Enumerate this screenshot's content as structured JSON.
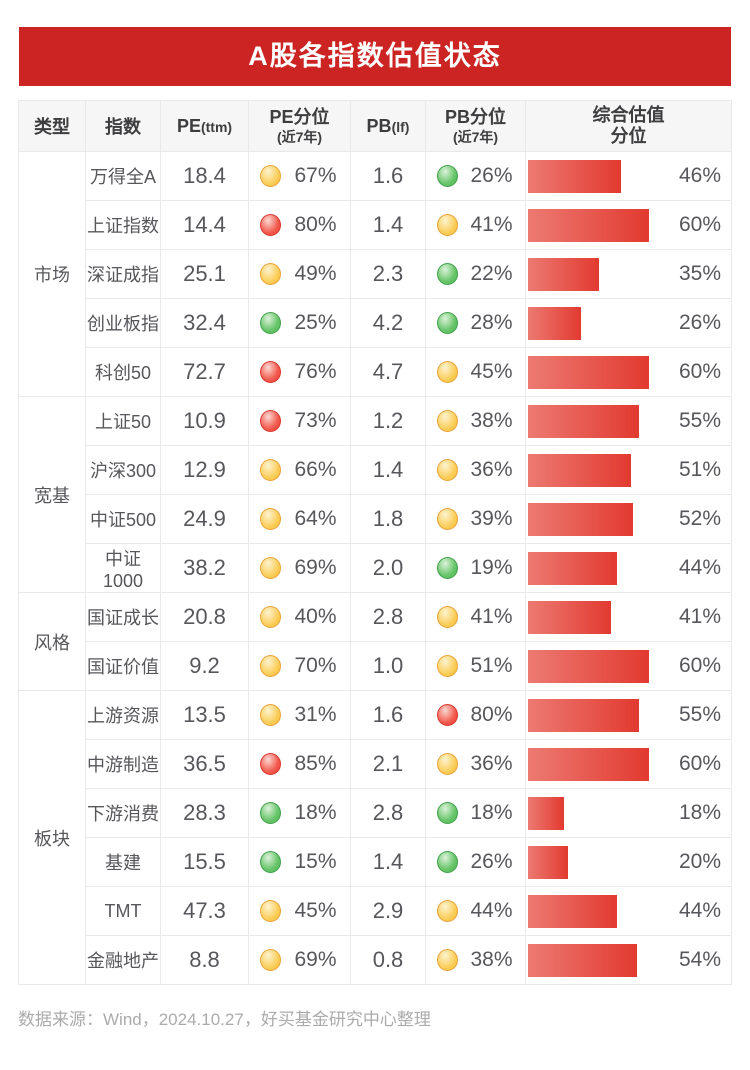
{
  "title": "A股各指数估值状态",
  "source_note": "数据来源：Wind，2024.10.27，好买基金研究中心整理",
  "columns": {
    "type": "类型",
    "index": "指数",
    "pe_label": "PE",
    "pe_unit": "(ttm)",
    "pe_pct_label": "PE分位",
    "pb_label": "PB",
    "pb_unit": "(lf)",
    "pb_pct_label": "PB分位",
    "pct_window": "(近7年)",
    "composite_line1": "综合估值",
    "composite_line2": "分位"
  },
  "colors": {
    "banner_red": "#CC2423",
    "bar_gradient_start": "#EC7A72",
    "bar_gradient_end": "#E23A30",
    "signal_red": "#EE3D31",
    "signal_yellow": "#FACB52",
    "signal_green": "#4FB956"
  },
  "chart_data": {
    "type": "table",
    "title": "A股各指数估值状态",
    "columns": [
      "类型",
      "指数",
      "PE(ttm)",
      "PE分位(近7年)",
      "PB(lf)",
      "PB分位(近7年)",
      "综合估值分位"
    ],
    "groups": [
      {
        "label": "市场",
        "rows": [
          {
            "index": "万得全A",
            "pe": "18.4",
            "pe_pct": "67%",
            "pe_level": "yellow",
            "pb": "1.6",
            "pb_pct": "26%",
            "pb_level": "green",
            "composite": "46%",
            "composite_value": 46
          },
          {
            "index": "上证指数",
            "pe": "14.4",
            "pe_pct": "80%",
            "pe_level": "red",
            "pb": "1.4",
            "pb_pct": "41%",
            "pb_level": "yellow",
            "composite": "60%",
            "composite_value": 60
          },
          {
            "index": "深证成指",
            "pe": "25.1",
            "pe_pct": "49%",
            "pe_level": "yellow",
            "pb": "2.3",
            "pb_pct": "22%",
            "pb_level": "green",
            "composite": "35%",
            "composite_value": 35
          },
          {
            "index": "创业板指",
            "pe": "32.4",
            "pe_pct": "25%",
            "pe_level": "green",
            "pb": "4.2",
            "pb_pct": "28%",
            "pb_level": "green",
            "composite": "26%",
            "composite_value": 26
          },
          {
            "index": "科创50",
            "pe": "72.7",
            "pe_pct": "76%",
            "pe_level": "red",
            "pb": "4.7",
            "pb_pct": "45%",
            "pb_level": "yellow",
            "composite": "60%",
            "composite_value": 60
          }
        ]
      },
      {
        "label": "宽基",
        "rows": [
          {
            "index": "上证50",
            "pe": "10.9",
            "pe_pct": "73%",
            "pe_level": "red",
            "pb": "1.2",
            "pb_pct": "38%",
            "pb_level": "yellow",
            "composite": "55%",
            "composite_value": 55
          },
          {
            "index": "沪深300",
            "pe": "12.9",
            "pe_pct": "66%",
            "pe_level": "yellow",
            "pb": "1.4",
            "pb_pct": "36%",
            "pb_level": "yellow",
            "composite": "51%",
            "composite_value": 51
          },
          {
            "index": "中证500",
            "pe": "24.9",
            "pe_pct": "64%",
            "pe_level": "yellow",
            "pb": "1.8",
            "pb_pct": "39%",
            "pb_level": "yellow",
            "composite": "52%",
            "composite_value": 52
          },
          {
            "index": "中证1000",
            "pe": "38.2",
            "pe_pct": "69%",
            "pe_level": "yellow",
            "pb": "2.0",
            "pb_pct": "19%",
            "pb_level": "green",
            "composite": "44%",
            "composite_value": 44
          }
        ]
      },
      {
        "label": "风格",
        "rows": [
          {
            "index": "国证成长",
            "pe": "20.8",
            "pe_pct": "40%",
            "pe_level": "yellow",
            "pb": "2.8",
            "pb_pct": "41%",
            "pb_level": "yellow",
            "composite": "41%",
            "composite_value": 41
          },
          {
            "index": "国证价值",
            "pe": "9.2",
            "pe_pct": "70%",
            "pe_level": "yellow",
            "pb": "1.0",
            "pb_pct": "51%",
            "pb_level": "yellow",
            "composite": "60%",
            "composite_value": 60
          }
        ]
      },
      {
        "label": "板块",
        "rows": [
          {
            "index": "上游资源",
            "pe": "13.5",
            "pe_pct": "31%",
            "pe_level": "yellow",
            "pb": "1.6",
            "pb_pct": "80%",
            "pb_level": "red",
            "composite": "55%",
            "composite_value": 55
          },
          {
            "index": "中游制造",
            "pe": "36.5",
            "pe_pct": "85%",
            "pe_level": "red",
            "pb": "2.1",
            "pb_pct": "36%",
            "pb_level": "yellow",
            "composite": "60%",
            "composite_value": 60
          },
          {
            "index": "下游消费",
            "pe": "28.3",
            "pe_pct": "18%",
            "pe_level": "green",
            "pb": "2.8",
            "pb_pct": "18%",
            "pb_level": "green",
            "composite": "18%",
            "composite_value": 18
          },
          {
            "index": "基建",
            "pe": "15.5",
            "pe_pct": "15%",
            "pe_level": "green",
            "pb": "1.4",
            "pb_pct": "26%",
            "pb_level": "green",
            "composite": "20%",
            "composite_value": 20
          },
          {
            "index": "TMT",
            "pe": "47.3",
            "pe_pct": "45%",
            "pe_level": "yellow",
            "pb": "2.9",
            "pb_pct": "44%",
            "pb_level": "yellow",
            "composite": "44%",
            "composite_value": 44
          },
          {
            "index": "金融地产",
            "pe": "8.8",
            "pe_pct": "69%",
            "pe_level": "yellow",
            "pb": "0.8",
            "pb_pct": "38%",
            "pb_level": "yellow",
            "composite": "54%",
            "composite_value": 54
          }
        ]
      }
    ]
  }
}
